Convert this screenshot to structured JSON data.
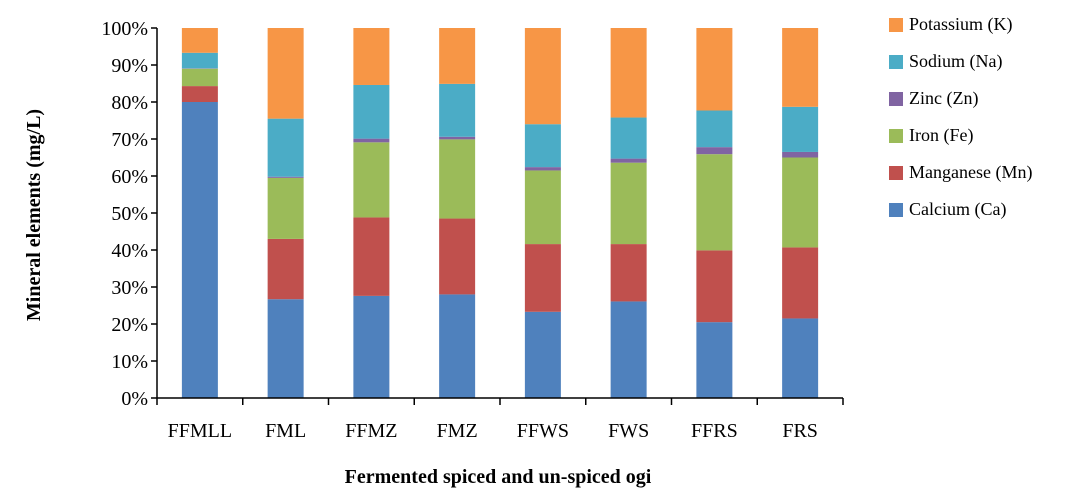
{
  "chart_data": {
    "type": "bar",
    "stacked": true,
    "normalized_percent": true,
    "title": "",
    "xlabel": "Fermented spiced and un-spiced ogi",
    "ylabel": "Mineral elements  (mg/L)",
    "ylim": [
      0,
      100
    ],
    "y_ticks": [
      "0%",
      "10%",
      "20%",
      "30%",
      "40%",
      "50%",
      "60%",
      "70%",
      "80%",
      "90%",
      "100%"
    ],
    "grid": false,
    "legend_position": "right",
    "categories": [
      "FFMLL",
      "FML",
      "FFMZ",
      "FMZ",
      "FFWS",
      "FWS",
      "FFRS",
      "FRS"
    ],
    "series": [
      {
        "name": "Calcium (Ca)",
        "color": "#4F81BD",
        "values": [
          80.0,
          26.7,
          27.6,
          28.0,
          23.3,
          26.1,
          20.5,
          21.5
        ]
      },
      {
        "name": "Manganese (Mn)",
        "color": "#C0504D",
        "values": [
          4.3,
          16.3,
          21.2,
          20.5,
          18.3,
          15.5,
          19.4,
          19.2
        ]
      },
      {
        "name": "Iron (Fe)",
        "color": "#9BBB59",
        "values": [
          4.7,
          16.5,
          20.3,
          21.4,
          19.9,
          22.0,
          26.0,
          24.3
        ]
      },
      {
        "name": "Zinc (Zn)",
        "color": "#8064A2",
        "values": [
          0.1,
          0.3,
          1.0,
          0.7,
          0.9,
          1.1,
          1.9,
          1.5
        ]
      },
      {
        "name": "Sodium (Na)",
        "color": "#4BACC6",
        "values": [
          4.2,
          15.7,
          14.5,
          14.3,
          11.6,
          11.1,
          9.9,
          12.2
        ]
      },
      {
        "name": "Potassium (K)",
        "color": "#F79646",
        "values": [
          6.7,
          24.5,
          15.4,
          15.1,
          26.0,
          24.2,
          22.3,
          21.3
        ]
      }
    ]
  }
}
